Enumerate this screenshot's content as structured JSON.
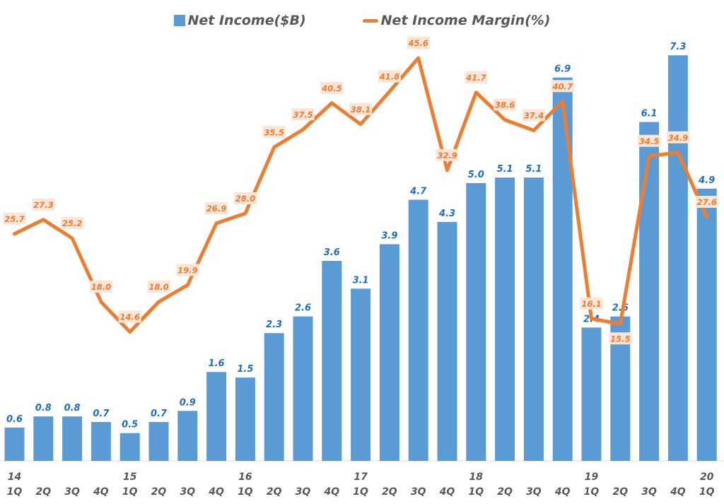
{
  "chart_data": {
    "type": "bar+line",
    "categories": [
      "14 1Q",
      "2Q",
      "3Q",
      "4Q",
      "15 1Q",
      "2Q",
      "3Q",
      "4Q",
      "16 1Q",
      "2Q",
      "3Q",
      "4Q",
      "17 1Q",
      "2Q",
      "3Q",
      "4Q",
      "18 1Q",
      "2Q",
      "3Q",
      "4Q",
      "19 1Q",
      "2Q",
      "3Q",
      "4Q",
      "20 1Q"
    ],
    "year_labels": [
      "14",
      "",
      "",
      "",
      "15",
      "",
      "",
      "",
      "16",
      "",
      "",
      "",
      "17",
      "",
      "",
      "",
      "18",
      "",
      "",
      "",
      "19",
      "",
      "",
      "",
      "20"
    ],
    "quarter_labels": [
      "1Q",
      "2Q",
      "3Q",
      "4Q",
      "1Q",
      "2Q",
      "3Q",
      "4Q",
      "1Q",
      "2Q",
      "3Q",
      "4Q",
      "1Q",
      "2Q",
      "3Q",
      "4Q",
      "1Q",
      "2Q",
      "3Q",
      "4Q",
      "1Q",
      "2Q",
      "3Q",
      "4Q",
      "1Q"
    ],
    "series": [
      {
        "name": "Net Income($B)",
        "type": "bar",
        "color": "#5b9bd5",
        "label_color": "#1f6fc0",
        "values": [
          0.6,
          0.8,
          0.8,
          0.7,
          0.5,
          0.7,
          0.9,
          1.6,
          1.5,
          2.3,
          2.6,
          3.6,
          3.1,
          3.9,
          4.7,
          4.3,
          5.0,
          5.1,
          5.1,
          6.9,
          2.4,
          2.6,
          6.1,
          7.3,
          4.9
        ]
      },
      {
        "name": "Net Income Margin(%)",
        "type": "line",
        "color": "#ed7d31",
        "label_bg": "#fbe5d6",
        "values": [
          25.7,
          27.3,
          25.2,
          18.0,
          14.6,
          18.0,
          19.9,
          26.9,
          28.0,
          35.5,
          37.5,
          40.5,
          38.1,
          41.8,
          45.6,
          32.9,
          41.7,
          38.6,
          37.4,
          40.7,
          16.1,
          15.5,
          34.5,
          34.9,
          27.6
        ]
      }
    ],
    "legend": "top-center",
    "grid": false
  }
}
